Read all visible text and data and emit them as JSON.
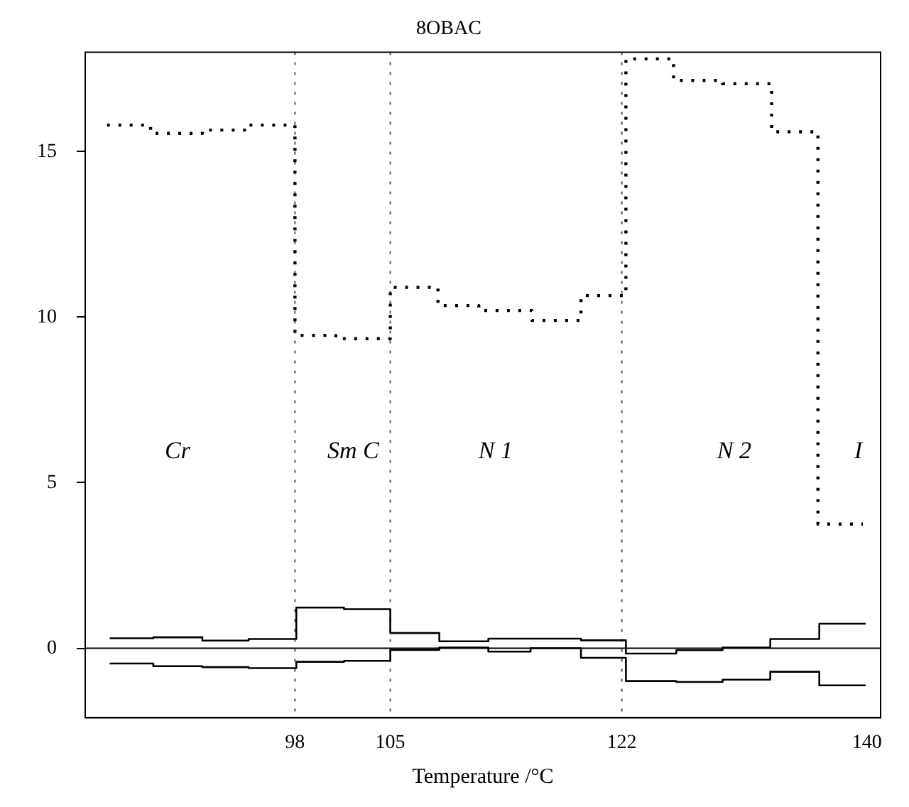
{
  "chart_data": {
    "type": "step",
    "title": "8OBAC",
    "xlabel": "Temperature /°C",
    "xlim": [
      82.6,
      141
    ],
    "xticks": [
      98,
      105,
      122,
      140
    ],
    "ylim": [
      -2.1,
      18
    ],
    "yticks": [
      0,
      5,
      10,
      15
    ],
    "grid": false,
    "legend": false,
    "marker": "none",
    "series": [
      {
        "color": "#000000",
        "line_style": "dotted",
        "x": [
          84.2,
          87.4,
          91.2,
          94.3,
          98,
          101,
          105,
          108.5,
          111.5,
          115.4,
          119,
          122.3,
          125.8,
          129.4,
          133,
          136.4,
          139.7
        ],
        "values": [
          15.8,
          15.55,
          15.65,
          15.8,
          9.45,
          9.35,
          10.9,
          10.35,
          10.2,
          9.9,
          10.65,
          17.8,
          17.15,
          17.05,
          15.6,
          3.75,
          3.75
        ]
      },
      {
        "color": "#000000",
        "line_style": "solid",
        "x": [
          84.4,
          87.6,
          91.2,
          94.6,
          98.1,
          101.6,
          105,
          108.6,
          112.2,
          115.3,
          119,
          122.3,
          126,
          129.4,
          132.9,
          136.5,
          139.9
        ],
        "values": [
          0.3,
          0.33,
          0.23,
          0.28,
          1.23,
          1.18,
          0.46,
          0.21,
          0.29,
          0.29,
          0.24,
          -0.16,
          -0.06,
          0.02,
          0.28,
          0.74,
          0.74
        ]
      },
      {
        "color": "#000000",
        "line_style": "solid",
        "x": [
          84.4,
          87.6,
          91.2,
          94.6,
          98.1,
          101.6,
          105,
          108.6,
          112.2,
          115.3,
          119,
          122.3,
          126,
          129.4,
          132.9,
          136.5,
          139.9
        ],
        "values": [
          -0.46,
          -0.54,
          -0.57,
          -0.6,
          -0.41,
          -0.38,
          -0.05,
          0.02,
          -0.1,
          0,
          -0.29,
          -0.99,
          -1.02,
          -0.95,
          -0.71,
          -1.12,
          -1.12
        ]
      }
    ],
    "ref_lines": [
      {
        "axis": "y",
        "value": 0,
        "color": "#000000",
        "line_style": "solid"
      },
      {
        "axis": "x",
        "value": 98,
        "color": "#555555",
        "line_style": "dotted"
      },
      {
        "axis": "x",
        "value": 105,
        "color": "#555555",
        "line_style": "dotted"
      },
      {
        "axis": "x",
        "value": 122,
        "color": "#555555",
        "line_style": "dotted"
      }
    ],
    "annotations": [
      "Cr",
      "Sm C",
      "N 1",
      "N 2",
      "I"
    ]
  }
}
